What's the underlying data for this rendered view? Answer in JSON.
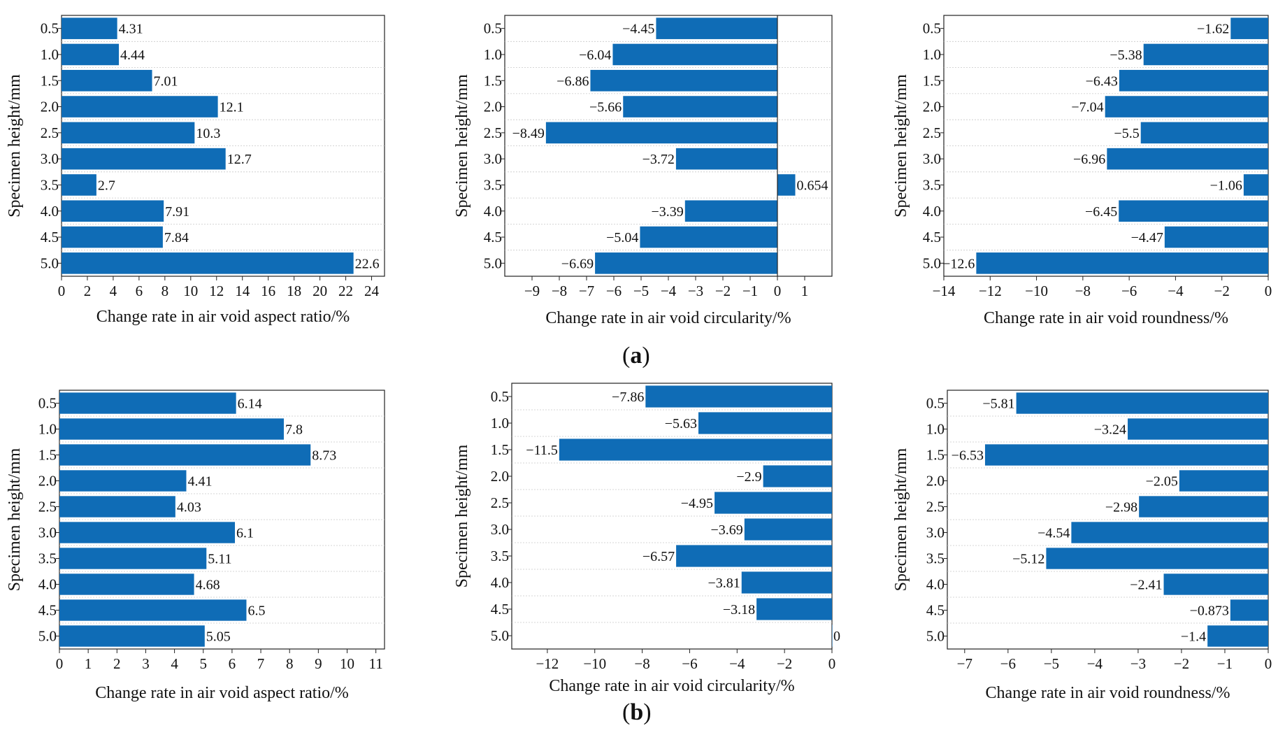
{
  "panel_labels": [
    "a",
    "b"
  ],
  "chart_data": [
    {
      "type": "bar",
      "orientation": "horizontal",
      "categories": [
        "0.5",
        "1.0",
        "1.5",
        "2.0",
        "2.5",
        "3.0",
        "3.5",
        "4.0",
        "4.5",
        "5.0"
      ],
      "values": [
        4.31,
        4.44,
        7.01,
        12.1,
        10.3,
        12.7,
        2.7,
        7.91,
        7.84,
        22.6
      ],
      "value_labels": [
        "4.31",
        "4.44",
        "7.01",
        "12.1",
        "10.3",
        "12.7",
        "2.7",
        "7.91",
        "7.84",
        "22.6"
      ],
      "xlabel": "Change rate in air void aspect ratio/%",
      "ylabel": "Specimen height/mm",
      "xlim": [
        0,
        25
      ],
      "xticks": [
        0,
        2,
        4,
        6,
        8,
        10,
        12,
        14,
        16,
        18,
        20,
        22,
        24
      ],
      "xtick_labels": [
        "0",
        "2",
        "4",
        "6",
        "8",
        "10",
        "12",
        "14",
        "16",
        "18",
        "20",
        "22",
        "24"
      ],
      "color": "#0f6cb6"
    },
    {
      "type": "bar",
      "orientation": "horizontal",
      "categories": [
        "0.5",
        "1.0",
        "1.5",
        "2.0",
        "2.5",
        "3.0",
        "3.5",
        "4.0",
        "4.5",
        "5.0"
      ],
      "values": [
        -4.45,
        -6.04,
        -6.86,
        -5.66,
        -8.49,
        -3.72,
        0.654,
        -3.39,
        -5.04,
        -6.69
      ],
      "value_labels": [
        "−4.45",
        "−6.04",
        "−6.86",
        "−5.66",
        "−8.49",
        "−3.72",
        "0.654",
        "−3.39",
        "−5.04",
        "−6.69"
      ],
      "xlabel": "Change rate in air void circularity/%",
      "ylabel": "Specimen height/mm",
      "xlim": [
        -10,
        2
      ],
      "xticks": [
        -9,
        -8,
        -7,
        -6,
        -5,
        -4,
        -3,
        -2,
        -1,
        0,
        1
      ],
      "xtick_labels": [
        "−9",
        "−8",
        "−7",
        "−6",
        "−5",
        "−4",
        "−3",
        "−2",
        "−1",
        "0",
        "1"
      ],
      "color": "#0f6cb6"
    },
    {
      "type": "bar",
      "orientation": "horizontal",
      "categories": [
        "0.5",
        "1.0",
        "1.5",
        "2.0",
        "2.5",
        "3.0",
        "3.5",
        "4.0",
        "4.5",
        "5.0"
      ],
      "values": [
        -1.62,
        -5.38,
        -6.43,
        -7.04,
        -5.5,
        -6.96,
        -1.06,
        -6.45,
        -4.47,
        -12.6
      ],
      "value_labels": [
        "−1.62",
        "−5.38",
        "−6.43",
        "−7.04",
        "−5.5",
        "−6.96",
        "−1.06",
        "−6.45",
        "−4.47",
        "−12.6"
      ],
      "xlabel": "Change rate in air void roundness/%",
      "ylabel": "Specimen height/mm",
      "xlim": [
        -14,
        0
      ],
      "xticks": [
        -14,
        -12,
        -10,
        -8,
        -6,
        -4,
        -2,
        0
      ],
      "xtick_labels": [
        "−14",
        "−12",
        "−10",
        "−8",
        "−6",
        "−4",
        "−2",
        "0"
      ],
      "color": "#0f6cb6"
    },
    {
      "type": "bar",
      "orientation": "horizontal",
      "categories": [
        "0.5",
        "1.0",
        "1.5",
        "2.0",
        "2.5",
        "3.0",
        "3.5",
        "4.0",
        "4.5",
        "5.0"
      ],
      "values": [
        6.14,
        7.8,
        8.73,
        4.41,
        4.03,
        6.1,
        5.11,
        4.68,
        6.5,
        5.05
      ],
      "value_labels": [
        "6.14",
        "7.8",
        "8.73",
        "4.41",
        "4.03",
        "6.1",
        "5.11",
        "4.68",
        "6.5",
        "5.05"
      ],
      "xlabel": "Change rate in air void aspect ratio/%",
      "ylabel": "Specimen height/mm",
      "xlim": [
        0,
        11.3
      ],
      "xticks": [
        0,
        1,
        2,
        3,
        4,
        5,
        6,
        7,
        8,
        9,
        10,
        11
      ],
      "xtick_labels": [
        "0",
        "1",
        "2",
        "3",
        "4",
        "5",
        "6",
        "7",
        "8",
        "9",
        "10",
        "11"
      ],
      "color": "#0f6cb6"
    },
    {
      "type": "bar",
      "orientation": "horizontal",
      "categories": [
        "0.5",
        "1.0",
        "1.5",
        "2.0",
        "2.5",
        "3.0",
        "3.5",
        "4.0",
        "4.5",
        "5.0"
      ],
      "values": [
        -7.86,
        -5.63,
        -11.5,
        -2.9,
        -4.95,
        -3.69,
        -6.57,
        -3.81,
        -3.18,
        0
      ],
      "value_labels": [
        "−7.86",
        "−5.63",
        "−11.5",
        "−2.9",
        "−4.95",
        "−3.69",
        "−6.57",
        "−3.81",
        "−3.18",
        "0"
      ],
      "xlabel": "Change rate in air void circularity/%",
      "ylabel": "Specimen height/mm",
      "xlim": [
        -13.5,
        0
      ],
      "xticks": [
        -12,
        -10,
        -8,
        -6,
        -4,
        -2,
        0
      ],
      "xtick_labels": [
        "−12",
        "−10",
        "−8",
        "−6",
        "−4",
        "−2",
        "0"
      ],
      "color": "#0f6cb6"
    },
    {
      "type": "bar",
      "orientation": "horizontal",
      "categories": [
        "0.5",
        "1.0",
        "1.5",
        "2.0",
        "2.5",
        "3.0",
        "3.5",
        "4.0",
        "4.5",
        "5.0"
      ],
      "values": [
        -5.81,
        -3.24,
        -6.53,
        -2.05,
        -2.98,
        -4.54,
        -5.12,
        -2.41,
        -0.873,
        -1.4
      ],
      "value_labels": [
        "−5.81",
        "−3.24",
        "−6.53",
        "−2.05",
        "−2.98",
        "−4.54",
        "−5.12",
        "−2.41",
        "−0.873",
        "−1.4"
      ],
      "xlabel": "Change rate in air void roundness/%",
      "ylabel": "Specimen height/mm",
      "xlim": [
        -7.4,
        0
      ],
      "xticks": [
        -7,
        -6,
        -5,
        -4,
        -3,
        -2,
        -1,
        0
      ],
      "xtick_labels": [
        "−7",
        "−6",
        "−5",
        "−4",
        "−3",
        "−2",
        "−1",
        "0"
      ],
      "color": "#0f6cb6"
    }
  ]
}
